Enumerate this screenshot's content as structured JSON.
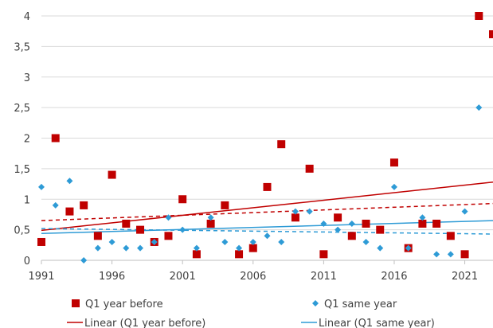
{
  "chart_data": {
    "type": "scatter",
    "x_ticks": [
      "1991",
      "1996",
      "2001",
      "2006",
      "2011",
      "2016",
      "2021"
    ],
    "x_tick_values": [
      1991,
      1996,
      2001,
      2006,
      2011,
      2016,
      2021
    ],
    "y_ticks": [
      "0",
      "0,5",
      "1",
      "1,5",
      "2",
      "2,5",
      "3",
      "3,5",
      "4"
    ],
    "y_tick_values": [
      0,
      0.5,
      1,
      1.5,
      2,
      2.5,
      3,
      3.5,
      4
    ],
    "xlim": [
      1991,
      2023
    ],
    "ylim": [
      0,
      4
    ],
    "grid": "horizontal",
    "legend_position": "bottom",
    "series": [
      {
        "name": "Q1 year before",
        "marker": "square",
        "color": "#C00000",
        "x": [
          1991,
          1992,
          1993,
          1994,
          1995,
          1996,
          1997,
          1998,
          1999,
          2000,
          2001,
          2002,
          2003,
          2004,
          2005,
          2006,
          2007,
          2008,
          2009,
          2010,
          2011,
          2012,
          2013,
          2014,
          2015,
          2016,
          2017,
          2018,
          2019,
          2020,
          2021,
          2022,
          2023
        ],
        "y": [
          0.3,
          2.0,
          0.8,
          0.9,
          0.4,
          1.4,
          0.6,
          0.5,
          0.3,
          0.4,
          1.0,
          0.1,
          0.6,
          0.9,
          0.1,
          0.2,
          1.2,
          1.9,
          0.7,
          1.5,
          0.1,
          0.7,
          0.4,
          0.6,
          0.5,
          1.6,
          0.2,
          0.6,
          0.6,
          0.4,
          0.1,
          4.0,
          3.7
        ]
      },
      {
        "name": "Q1 same year",
        "marker": "diamond",
        "color": "#2E9BD6",
        "x": [
          1991,
          1992,
          1993,
          1994,
          1995,
          1996,
          1997,
          1998,
          1999,
          2000,
          2001,
          2002,
          2003,
          2004,
          2005,
          2006,
          2007,
          2008,
          2009,
          2010,
          2011,
          2012,
          2013,
          2014,
          2015,
          2016,
          2017,
          2018,
          2019,
          2020,
          2021,
          2022
        ],
        "y": [
          1.2,
          0.9,
          1.3,
          0.0,
          0.2,
          0.3,
          0.2,
          0.2,
          0.3,
          0.7,
          0.5,
          0.2,
          0.7,
          0.3,
          0.2,
          0.3,
          0.4,
          0.3,
          0.8,
          0.8,
          0.6,
          0.5,
          0.6,
          0.3,
          0.2,
          1.2,
          0.2,
          0.7,
          0.1,
          0.1,
          0.8,
          2.5
        ]
      }
    ],
    "trendlines": [
      {
        "name": "Linear (Q1 year before)",
        "series": "Q1 year before",
        "color": "#C00000",
        "style": "solid",
        "x": [
          1991,
          2023
        ],
        "y": [
          0.49,
          1.28
        ]
      },
      {
        "name": "Linear (Q1 same year)",
        "series": "Q1 same year",
        "color": "#2E9BD6",
        "style": "solid",
        "x": [
          1991,
          2023
        ],
        "y": [
          0.44,
          0.65
        ]
      },
      {
        "series": "Q1 year before",
        "color": "#C00000",
        "style": "dashed",
        "x": [
          1991,
          2023
        ],
        "y": [
          0.65,
          0.93
        ]
      },
      {
        "series": "Q1 same year",
        "color": "#2E9BD6",
        "style": "dashed",
        "x": [
          1991,
          2023
        ],
        "y": [
          0.52,
          0.43
        ]
      }
    ],
    "legend": [
      "Q1 year before",
      "Q1 same year",
      "Linear (Q1 year before)",
      "Linear (Q1 same year)"
    ]
  }
}
